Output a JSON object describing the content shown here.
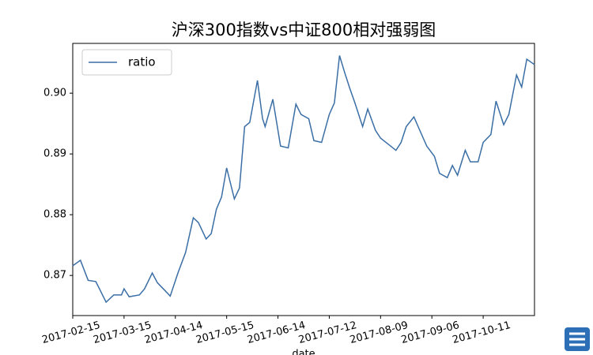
{
  "chart_data": {
    "type": "line",
    "title": "沪深300指数vs中证800相对强弱图",
    "x_label": "date",
    "xlim": [
      0,
      180
    ],
    "xticks": [
      {
        "value": 0,
        "label": "2017-02-15"
      },
      {
        "value": 20,
        "label": "2017-03-15"
      },
      {
        "value": 40,
        "label": "2017-04-14"
      },
      {
        "value": 60,
        "label": "2017-05-15"
      },
      {
        "value": 80,
        "label": "2017-06-14"
      },
      {
        "value": 100,
        "label": "2017-07-12"
      },
      {
        "value": 120,
        "label": "2017-08-09"
      },
      {
        "value": 140,
        "label": "2017-09-06"
      },
      {
        "value": 160,
        "label": "2017-10-11"
      }
    ],
    "ylim": [
      0.8634,
      0.9082
    ],
    "yticks": [
      0.87,
      0.88,
      0.89,
      {
        "value": 0.9,
        "label": "0.90"
      }
    ],
    "legend": "upper left",
    "x": [
      0,
      3,
      6,
      9,
      13,
      16,
      19,
      20,
      22,
      26,
      28,
      31,
      33,
      36,
      38,
      41,
      44,
      47,
      49,
      52,
      54,
      56,
      58,
      60,
      63,
      65,
      67,
      69,
      72,
      74,
      75,
      78,
      81,
      84,
      87,
      89,
      92,
      94,
      97,
      100,
      102,
      104,
      106,
      108,
      110,
      113,
      115,
      118,
      120,
      123,
      126,
      128,
      130,
      133,
      136,
      138,
      141,
      143,
      146,
      148,
      150,
      153,
      155,
      158,
      160,
      163,
      165,
      168,
      170,
      173,
      175,
      177,
      180
    ],
    "series": [
      {
        "name": "ratio",
        "color": "#3a6ea5",
        "values": [
          0.8716,
          0.8725,
          0.8692,
          0.869,
          0.8656,
          0.8668,
          0.8668,
          0.8678,
          0.8665,
          0.8668,
          0.8678,
          0.8704,
          0.8688,
          0.8675,
          0.8666,
          0.8704,
          0.8738,
          0.8795,
          0.8787,
          0.876,
          0.8769,
          0.8809,
          0.8829,
          0.8877,
          0.8826,
          0.8844,
          0.8945,
          0.8952,
          0.9021,
          0.8958,
          0.8945,
          0.899,
          0.8913,
          0.891,
          0.8982,
          0.8965,
          0.8958,
          0.8922,
          0.8919,
          0.8965,
          0.8984,
          0.9062,
          0.9034,
          0.9008,
          0.8984,
          0.8945,
          0.8974,
          0.8939,
          0.8926,
          0.8916,
          0.8906,
          0.8919,
          0.8945,
          0.8961,
          0.8932,
          0.8913,
          0.8896,
          0.8868,
          0.8861,
          0.8881,
          0.8865,
          0.8906,
          0.8887,
          0.8887,
          0.8919,
          0.8932,
          0.8987,
          0.8948,
          0.8965,
          0.903,
          0.901,
          0.9056,
          0.9047
        ]
      }
    ]
  }
}
